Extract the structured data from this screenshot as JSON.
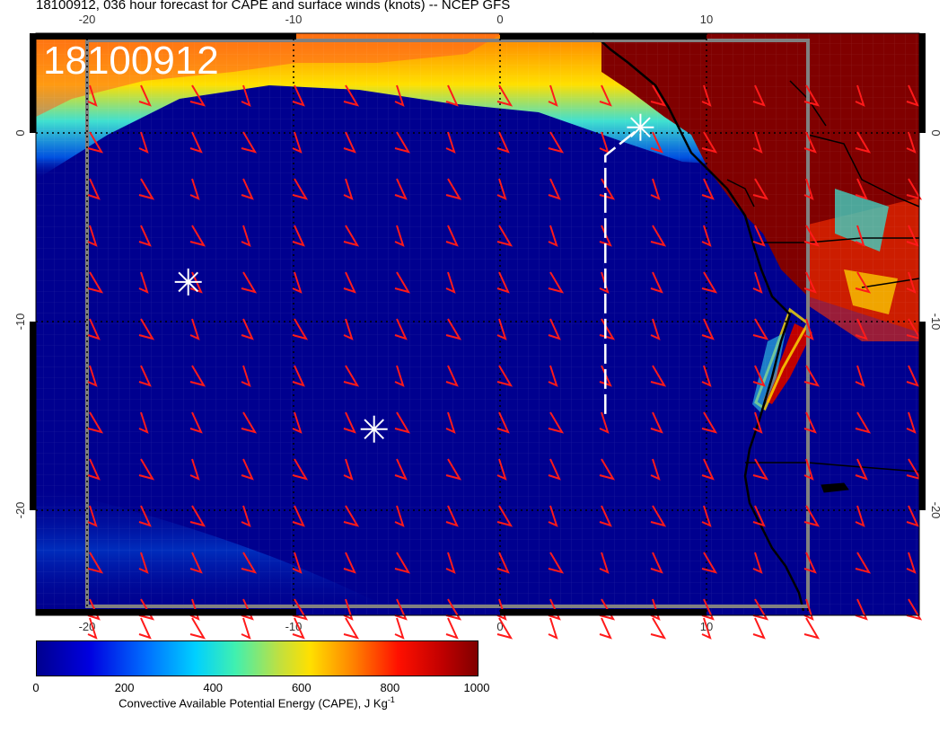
{
  "title": "18100912, 036 hour forecast for CAPE and surface winds (knots) -- NCEP GFS",
  "stamp": "18100912",
  "axes": {
    "lon_ticks": [
      "-20",
      "-10",
      "0",
      "10"
    ],
    "lat_ticks": [
      "0",
      "-10",
      "-20"
    ]
  },
  "colorbar": {
    "ticks": [
      "0",
      "200",
      "400",
      "600",
      "800",
      "1000"
    ],
    "title": "Convective Available Potential Energy (CAPE), J Kg",
    "unit_exp": "-1"
  },
  "colors": {
    "ocean_low": "#00008f",
    "barb": "#ff1a1a",
    "high_cape": "#800000"
  },
  "markers": [
    {
      "name": "marker-west",
      "lon": -15.1,
      "lat": -7.9
    },
    {
      "name": "marker-south",
      "lon": -6.1,
      "lat": -15.7
    },
    {
      "name": "marker-northeast",
      "lon": 6.8,
      "lat": 0.3
    }
  ],
  "track_description_points": [
    {
      "lon": 5.1,
      "lat": -14.9
    },
    {
      "lon": 5.1,
      "lat": -1.2
    },
    {
      "lon": 6.8,
      "lat": 0.3
    }
  ]
}
